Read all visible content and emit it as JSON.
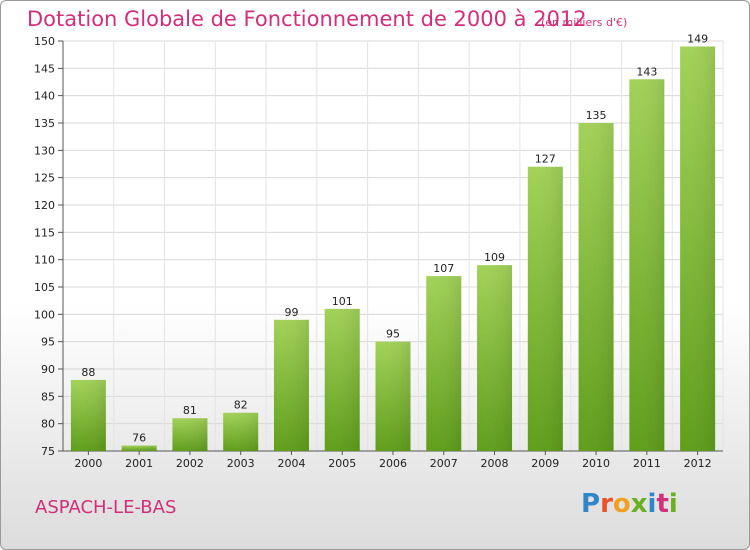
{
  "header": {
    "title": "Dotation Globale de Fonctionnement de 2000 à 2012",
    "subtitle": "(en milliers d'€)"
  },
  "footer": {
    "commune": "ASPACH-LE-BAS",
    "logo_letters": [
      "P",
      "r",
      "o",
      "x",
      "i",
      "t",
      "i"
    ]
  },
  "chart_data": {
    "type": "bar",
    "title": "Dotation Globale de Fonctionnement de 2000 à 2012",
    "subtitle": "(en milliers d'€)",
    "xlabel": "",
    "ylabel": "",
    "categories": [
      "2000",
      "2001",
      "2002",
      "2003",
      "2004",
      "2005",
      "2006",
      "2007",
      "2008",
      "2009",
      "2010",
      "2011",
      "2012"
    ],
    "values": [
      88,
      76,
      81,
      82,
      99,
      101,
      95,
      107,
      109,
      127,
      135,
      143,
      149
    ],
    "ylim": [
      75,
      150
    ],
    "yticks": [
      75,
      80,
      85,
      90,
      95,
      100,
      105,
      110,
      115,
      120,
      125,
      130,
      135,
      140,
      145,
      150
    ],
    "grid": true,
    "bar_color": "#7ab830",
    "bar_color_light": "#9fd055"
  }
}
